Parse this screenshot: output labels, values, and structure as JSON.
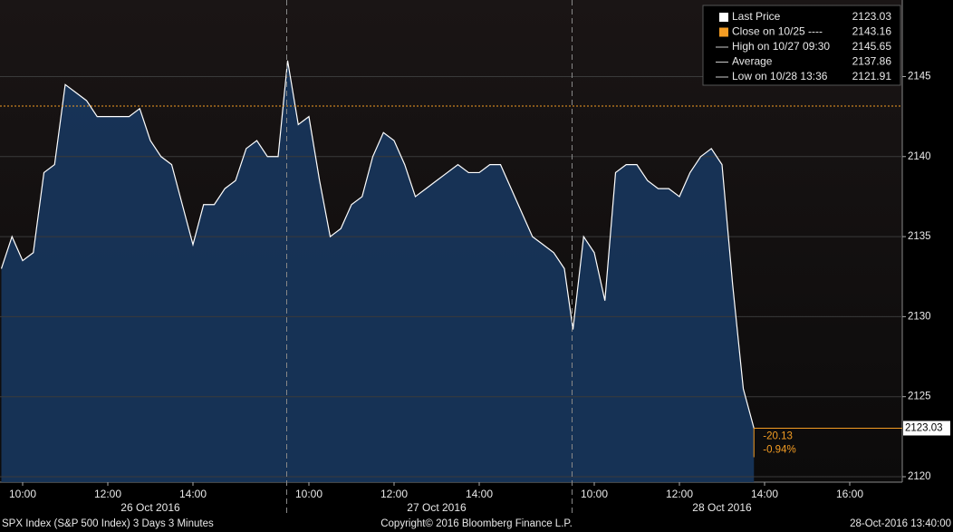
{
  "chart_data": {
    "type": "line",
    "color": "#ffffff",
    "fill_color": "#17355a",
    "ylim": [
      2119.66,
      2149.5
    ],
    "yticks": [
      2120,
      2125,
      2130,
      2135,
      2140,
      2145
    ],
    "grid": true,
    "days": [
      {
        "label": "26 Oct 2016",
        "categories": [
          null,
          null,
          "10:00",
          null,
          null,
          null,
          null,
          null,
          null,
          null,
          "12:00",
          null,
          null,
          null,
          null,
          null,
          null,
          null,
          "14:00",
          null,
          null,
          null,
          null,
          null,
          null,
          null,
          null
        ],
        "values": [
          2133,
          2135,
          2133.5,
          2134,
          2139,
          2139.5,
          2144.5,
          2144,
          2143.5,
          2142.5,
          2142.5,
          2142.5,
          2142.5,
          2143,
          2141,
          2140,
          2139.5,
          2137,
          2134.5,
          2137,
          2137,
          2138,
          2138.5,
          2140.5,
          2141,
          2140,
          2140
        ]
      },
      {
        "label": "27 Oct 2016",
        "categories": [
          null,
          null,
          "10:00",
          null,
          null,
          null,
          null,
          null,
          null,
          null,
          "12:00",
          null,
          null,
          null,
          null,
          null,
          null,
          null,
          "14:00",
          null,
          null,
          null,
          null,
          null,
          null,
          null,
          null
        ],
        "values": [
          2146,
          2142,
          2142.5,
          2138.5,
          2135,
          2135.5,
          2137,
          2137.5,
          2140,
          2141.5,
          2141,
          2139.5,
          2137.5,
          2138,
          2138.5,
          2139,
          2139.5,
          2139,
          2139,
          2139.5,
          2139.5,
          2138,
          2136.5,
          2135,
          2134.5,
          2134,
          2133
        ]
      },
      {
        "label": "28 Oct 2016",
        "categories": [
          null,
          null,
          "10:00",
          null,
          null,
          null,
          null,
          null,
          null,
          null,
          "12:00",
          null,
          null,
          null,
          null,
          null,
          null,
          null,
          "14:00",
          null,
          null,
          null,
          null,
          null,
          null,
          null,
          "16:00"
        ],
        "values": [
          2129.2,
          2135,
          2134,
          2131,
          2139,
          2139.5,
          2139.5,
          2138.5,
          2138,
          2138,
          2137.5,
          2139,
          2140,
          2140.5,
          2139.5,
          2132,
          2125.5,
          2123.03,
          null,
          null,
          null,
          null,
          null,
          null,
          null,
          null,
          null
        ]
      }
    ],
    "legend": [
      {
        "label": "Last Price",
        "value": 2123.03,
        "color": "#ffffff"
      },
      {
        "label": "Close on 10/25 ----",
        "value": 2143.16,
        "color": "#f39c23"
      },
      {
        "label": "High on 10/27 09:30",
        "value": 2145.65,
        "color": "#cccccc"
      },
      {
        "label": "Average",
        "value": 2137.86,
        "color": "#cccccc"
      },
      {
        "label": "Low on 10/28 13:36",
        "value": 2121.91,
        "color": "#cccccc"
      }
    ],
    "change": -20.13,
    "change_pct": {
      "value": -0.94,
      "label": "-0.94%"
    },
    "footer": {
      "left": "SPX Index (S&P 500 Index) 3 Days 3 Minutes",
      "center": "Copyright© 2016 Bloomberg Finance L.P.",
      "right": "28-Oct-2016 13:40:00"
    }
  }
}
